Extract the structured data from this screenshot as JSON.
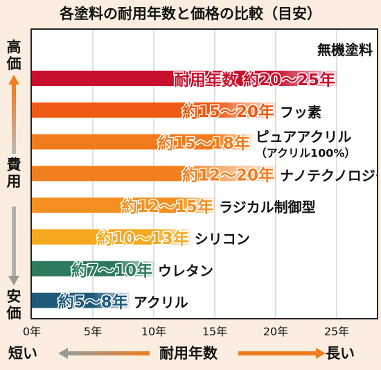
{
  "title": "各塗料の耐用年数と価格の比較（目安）",
  "left_axis": {
    "top_label": "高価",
    "middle_label": "費用",
    "bottom_label": "安価"
  },
  "bottom_axis": {
    "left_label": "短い",
    "center_label": "耐用年数",
    "right_label": "長い"
  },
  "colors": {
    "background": "#fbeee0",
    "arrow_orange": "#f07c1e",
    "arrow_gray": "#9a9a9a"
  },
  "chart_data": {
    "type": "bar",
    "orientation": "horizontal",
    "xlabel": "耐用年数",
    "ylabel": "費用",
    "xlim": [
      0,
      25
    ],
    "xticks": [
      {
        "value": 0,
        "label": "0年"
      },
      {
        "value": 5,
        "label": "5年"
      },
      {
        "value": 10,
        "label": "10年"
      },
      {
        "value": 15,
        "label": "15年"
      },
      {
        "value": 20,
        "label": "20年"
      },
      {
        "value": 25,
        "label": "25年"
      }
    ],
    "grid": true,
    "categories": [
      {
        "name": "無機塗料",
        "range": [
          20,
          25
        ],
        "label": "耐用年数 約20〜25年",
        "color": "#c8102e"
      },
      {
        "name": "フッ素",
        "range": [
          15,
          20
        ],
        "label": "約15〜20年",
        "color": "#ee5a14"
      },
      {
        "name": "ピュアアクリル\n（アクリル100%）",
        "range": [
          15,
          18
        ],
        "label": "約15〜18年",
        "color": "#f07a1c"
      },
      {
        "name": "ナノテクノロジー",
        "range": [
          12,
          20
        ],
        "label": "約12〜20年",
        "color": "#f27f1f"
      },
      {
        "name": "ラジカル制御型",
        "range": [
          12,
          15
        ],
        "label": "約12〜15年",
        "color": "#f4901f"
      },
      {
        "name": "シリコン",
        "range": [
          10,
          13
        ],
        "label": "約10〜13年",
        "color": "#f6a91e"
      },
      {
        "name": "ウレタン",
        "range": [
          7,
          10
        ],
        "label": "約7〜10年",
        "color": "#2e7a5e"
      },
      {
        "name": "アクリル",
        "range": [
          5,
          8
        ],
        "label": "約5〜8年",
        "color": "#1f5a7a"
      }
    ]
  }
}
